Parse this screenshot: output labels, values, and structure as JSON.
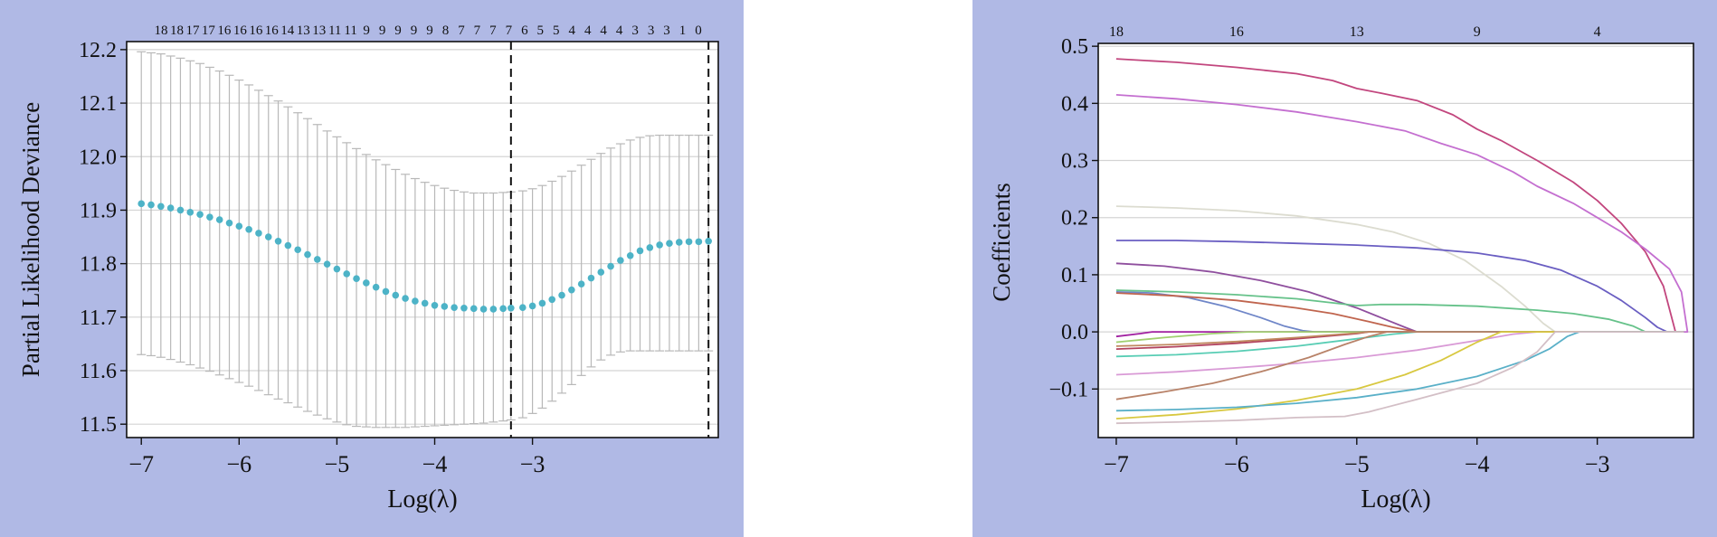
{
  "chart_data": [
    {
      "type": "scatter",
      "xlabel": "Log(λ)",
      "ylabel": "Partial Likelihood Deviance",
      "xlim": [
        -7.15,
        -1.1
      ],
      "ylim": [
        11.475,
        12.215
      ],
      "x_ticks": [
        "−7",
        "−6",
        "−5",
        "−4",
        "−3"
      ],
      "x_tick_values": [
        -7,
        -6,
        -5,
        -4,
        -3
      ],
      "y_ticks": [
        "11.5",
        "11.6",
        "11.7",
        "11.8",
        "11.9",
        "12.0",
        "12.1",
        "12.2"
      ],
      "y_tick_values": [
        11.5,
        11.6,
        11.7,
        11.8,
        11.9,
        12.0,
        12.1,
        12.2
      ],
      "top_axis_labels": [
        "18",
        "18",
        "17",
        "17",
        "16",
        "16",
        "16",
        "16",
        "14",
        "13",
        "13",
        "11",
        "11",
        "9",
        "9",
        "9",
        "9",
        "9",
        "8",
        "7",
        "7",
        "7",
        "7",
        "6",
        "5",
        "5",
        "4",
        "4",
        "4",
        "4",
        "3",
        "3",
        "3",
        "1",
        "0"
      ],
      "vlines": [
        -3.22,
        -1.2
      ],
      "grid": "horizontal",
      "point_color": "#4db3c7",
      "errorbar_color": "#b8b8b8",
      "series": [
        {
          "x": [
            -7.0,
            -6.9,
            -6.8,
            -6.7,
            -6.6,
            -6.5,
            -6.4,
            -6.3,
            -6.2,
            -6.1,
            -6.0,
            -5.9,
            -5.8,
            -5.7,
            -5.6,
            -5.5,
            -5.4,
            -5.3,
            -5.2,
            -5.1,
            -5.0,
            -4.9,
            -4.8,
            -4.7,
            -4.6,
            -4.5,
            -4.4,
            -4.3,
            -4.2,
            -4.1,
            -4.0,
            -3.9,
            -3.8,
            -3.7,
            -3.6,
            -3.5,
            -3.4,
            -3.3,
            -3.22,
            -3.1,
            -3.0,
            -2.9,
            -2.8,
            -2.7,
            -2.6,
            -2.5,
            -2.4,
            -2.3,
            -2.2,
            -2.1,
            -2.0,
            -1.9,
            -1.8,
            -1.7,
            -1.6,
            -1.5,
            -1.4,
            -1.3,
            -1.2
          ],
          "y": [
            11.912,
            11.91,
            11.907,
            11.904,
            11.9,
            11.896,
            11.892,
            11.887,
            11.882,
            11.876,
            11.87,
            11.864,
            11.857,
            11.85,
            11.842,
            11.834,
            11.826,
            11.817,
            11.808,
            11.799,
            11.79,
            11.781,
            11.772,
            11.764,
            11.756,
            11.748,
            11.741,
            11.735,
            11.73,
            11.726,
            11.722,
            11.72,
            11.718,
            11.717,
            11.716,
            11.715,
            11.715,
            11.716,
            11.717,
            11.718,
            11.721,
            11.726,
            11.733,
            11.741,
            11.751,
            11.762,
            11.773,
            11.784,
            11.795,
            11.806,
            11.815,
            11.824,
            11.83,
            11.835,
            11.838,
            11.84,
            11.841,
            11.841,
            11.842
          ],
          "upper": [
            12.196,
            12.194,
            12.192,
            12.188,
            12.184,
            12.179,
            12.174,
            12.167,
            12.16,
            12.152,
            12.143,
            12.134,
            12.124,
            12.114,
            12.104,
            12.093,
            12.082,
            12.071,
            12.06,
            12.048,
            12.037,
            12.026,
            12.015,
            12.004,
            11.994,
            11.985,
            11.976,
            11.967,
            11.959,
            11.952,
            11.946,
            11.941,
            11.937,
            11.934,
            11.932,
            11.932,
            11.932,
            11.933,
            11.934,
            11.936,
            11.94,
            11.946,
            11.954,
            11.963,
            11.973,
            11.984,
            11.995,
            12.006,
            12.016,
            12.024,
            12.031,
            12.036,
            12.039,
            12.04,
            12.04,
            12.04,
            12.04,
            12.04,
            12.04
          ],
          "lower": [
            11.63,
            11.628,
            11.625,
            11.621,
            11.616,
            11.611,
            11.605,
            11.599,
            11.592,
            11.585,
            11.578,
            11.571,
            11.563,
            11.555,
            11.547,
            11.54,
            11.532,
            11.524,
            11.517,
            11.51,
            11.504,
            11.499,
            11.496,
            11.495,
            11.494,
            11.494,
            11.494,
            11.494,
            11.495,
            11.496,
            11.497,
            11.498,
            11.499,
            11.5,
            11.501,
            11.502,
            11.504,
            11.506,
            11.508,
            11.512,
            11.52,
            11.53,
            11.543,
            11.558,
            11.574,
            11.591,
            11.607,
            11.62,
            11.629,
            11.635,
            11.637,
            11.637,
            11.637,
            11.637,
            11.637,
            11.637,
            11.637,
            11.637,
            11.637
          ]
        }
      ]
    },
    {
      "type": "line",
      "xlabel": "Log(λ)",
      "ylabel": "Coefficients",
      "xlim": [
        -7.15,
        -2.2
      ],
      "ylim": [
        -0.185,
        0.505
      ],
      "x_ticks": [
        "−7",
        "−6",
        "−5",
        "−4",
        "−3"
      ],
      "x_tick_values": [
        -7,
        -6,
        -5,
        -4,
        -3
      ],
      "y_ticks": [
        "0.5",
        "0.4",
        "0.3",
        "0.2",
        "0.1",
        "0.0",
        "−0.1"
      ],
      "y_tick_values": [
        0.5,
        0.4,
        0.3,
        0.2,
        0.1,
        0.0,
        -0.1
      ],
      "top_axis_labels": [
        "18",
        "16",
        "13",
        "9",
        "4"
      ],
      "top_axis_values": [
        -7,
        -6,
        -5,
        -4,
        -3
      ],
      "grid": "horizontal",
      "series": [
        {
          "color": "#c2467e",
          "x": [
            -7.0,
            -6.5,
            -6.0,
            -5.5,
            -5.2,
            -5.0,
            -4.8,
            -4.5,
            -4.2,
            -4.0,
            -3.8,
            -3.5,
            -3.2,
            -3.0,
            -2.8,
            -2.6,
            -2.45,
            -2.35
          ],
          "y": [
            0.478,
            0.472,
            0.463,
            0.452,
            0.44,
            0.426,
            0.418,
            0.405,
            0.38,
            0.355,
            0.335,
            0.3,
            0.262,
            0.23,
            0.19,
            0.14,
            0.08,
            0.0
          ]
        },
        {
          "color": "#c46fd0",
          "x": [
            -7.0,
            -6.5,
            -6.0,
            -5.5,
            -5.0,
            -4.6,
            -4.3,
            -4.0,
            -3.7,
            -3.5,
            -3.2,
            -3.0,
            -2.8,
            -2.6,
            -2.4,
            -2.3,
            -2.25
          ],
          "y": [
            0.415,
            0.408,
            0.398,
            0.385,
            0.368,
            0.352,
            0.33,
            0.31,
            0.28,
            0.255,
            0.225,
            0.2,
            0.175,
            0.145,
            0.11,
            0.07,
            0.0
          ]
        },
        {
          "color": "#dcdcd0",
          "x": [
            -7.0,
            -6.5,
            -6.0,
            -5.5,
            -5.0,
            -4.7,
            -4.4,
            -4.1,
            -3.8,
            -3.6,
            -3.45,
            -3.35
          ],
          "y": [
            0.22,
            0.217,
            0.212,
            0.203,
            0.188,
            0.175,
            0.155,
            0.125,
            0.08,
            0.045,
            0.015,
            0.0
          ]
        },
        {
          "color": "#6a5ec2",
          "x": [
            -7.0,
            -6.5,
            -6.0,
            -5.5,
            -5.0,
            -4.5,
            -4.0,
            -3.6,
            -3.3,
            -3.0,
            -2.8,
            -2.6,
            -2.5,
            -2.42
          ],
          "y": [
            0.16,
            0.16,
            0.158,
            0.155,
            0.152,
            0.147,
            0.138,
            0.125,
            0.108,
            0.08,
            0.055,
            0.025,
            0.008,
            0.0
          ]
        },
        {
          "color": "#8f4f9e",
          "x": [
            -7.0,
            -6.6,
            -6.2,
            -5.8,
            -5.4,
            -5.0,
            -4.8,
            -4.6,
            -4.5
          ],
          "y": [
            0.12,
            0.115,
            0.105,
            0.09,
            0.07,
            0.042,
            0.025,
            0.008,
            0.0
          ]
        },
        {
          "color": "#66c28a",
          "x": [
            -7.0,
            -6.5,
            -6.0,
            -5.5,
            -5.0,
            -4.8,
            -4.5,
            -4.0,
            -3.5,
            -3.2,
            -2.9,
            -2.7,
            -2.6
          ],
          "y": [
            0.073,
            0.07,
            0.065,
            0.058,
            0.046,
            0.048,
            0.048,
            0.045,
            0.038,
            0.032,
            0.022,
            0.01,
            0.0
          ]
        },
        {
          "color": "#6f86c8",
          "x": [
            -7.0,
            -6.7,
            -6.4,
            -6.1,
            -5.8,
            -5.6,
            -5.45,
            -5.35
          ],
          "y": [
            0.07,
            0.068,
            0.06,
            0.045,
            0.025,
            0.01,
            0.002,
            0.0
          ]
        },
        {
          "color": "#c0654e",
          "x": [
            -7.0,
            -6.5,
            -6.0,
            -5.5,
            -5.2,
            -4.9,
            -4.7,
            -4.5
          ],
          "y": [
            0.068,
            0.063,
            0.055,
            0.042,
            0.032,
            0.018,
            0.008,
            0.0
          ]
        },
        {
          "color": "#a020a0",
          "x": [
            -7.0,
            -6.8,
            -6.7,
            -6.5
          ],
          "y": [
            -0.008,
            -0.003,
            0.0,
            0.0
          ]
        },
        {
          "color": "#a0d070",
          "x": [
            -7.0,
            -6.6,
            -6.2,
            -5.9
          ],
          "y": [
            -0.018,
            -0.01,
            -0.003,
            0.0
          ]
        },
        {
          "color": "#b2425e",
          "x": [
            -7.0,
            -6.5,
            -6.0,
            -5.5,
            -5.0,
            -4.9
          ],
          "y": [
            -0.03,
            -0.026,
            -0.02,
            -0.012,
            -0.003,
            0.0
          ]
        },
        {
          "color": "#c08860",
          "x": [
            -7.0,
            -6.5,
            -6.0,
            -5.5,
            -5.0,
            -4.9
          ],
          "y": [
            -0.025,
            -0.022,
            -0.017,
            -0.01,
            -0.002,
            0.0
          ]
        },
        {
          "color": "#58cdb4",
          "x": [
            -7.0,
            -6.5,
            -6.0,
            -5.5,
            -5.0,
            -4.7,
            -4.5
          ],
          "y": [
            -0.043,
            -0.04,
            -0.034,
            -0.025,
            -0.012,
            -0.004,
            0.0
          ]
        },
        {
          "color": "#d99ad6",
          "x": [
            -7.0,
            -6.5,
            -6.0,
            -5.5,
            -5.0,
            -4.5,
            -4.0,
            -3.7,
            -3.5
          ],
          "y": [
            -0.075,
            -0.07,
            -0.063,
            -0.055,
            -0.045,
            -0.032,
            -0.015,
            -0.004,
            0.0
          ]
        },
        {
          "color": "#b88268",
          "x": [
            -7.0,
            -6.6,
            -6.2,
            -5.8,
            -5.4,
            -5.1,
            -4.9,
            -4.75
          ],
          "y": [
            -0.118,
            -0.105,
            -0.09,
            -0.07,
            -0.045,
            -0.022,
            -0.008,
            0.0
          ]
        },
        {
          "color": "#d8c840",
          "x": [
            -7.0,
            -6.5,
            -6.0,
            -5.5,
            -5.0,
            -4.6,
            -4.3,
            -4.0,
            -3.8
          ],
          "y": [
            -0.152,
            -0.145,
            -0.135,
            -0.12,
            -0.1,
            -0.075,
            -0.05,
            -0.018,
            0.0
          ]
        },
        {
          "color": "#5ab0c8",
          "x": [
            -7.0,
            -6.5,
            -6.0,
            -5.5,
            -5.0,
            -4.5,
            -4.0,
            -3.6,
            -3.4,
            -3.25,
            -3.15
          ],
          "y": [
            -0.138,
            -0.136,
            -0.132,
            -0.125,
            -0.115,
            -0.1,
            -0.078,
            -0.05,
            -0.03,
            -0.008,
            0.0
          ]
        },
        {
          "color": "#d3bfc6",
          "x": [
            -7.0,
            -6.5,
            -6.0,
            -5.5,
            -5.1,
            -4.9,
            -4.5,
            -4.0,
            -3.7,
            -3.5,
            -3.35
          ],
          "y": [
            -0.16,
            -0.158,
            -0.155,
            -0.15,
            -0.148,
            -0.14,
            -0.118,
            -0.09,
            -0.062,
            -0.035,
            0.0
          ]
        }
      ]
    }
  ]
}
